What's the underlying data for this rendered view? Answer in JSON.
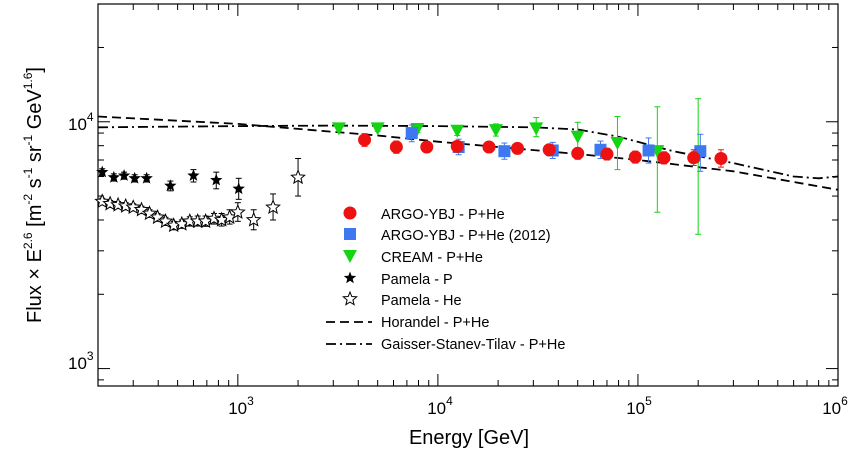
{
  "chart_data": {
    "type": "scatter",
    "x_scale": "log",
    "y_scale": "log",
    "xlim": [
      200,
      1000000
    ],
    "ylim": [
      850,
      30000
    ],
    "grid": false,
    "legend_position": "center",
    "xlabel": "Energy [GeV]",
    "ylabel": {
      "main": "Flux × E",
      "exp1": "2.6",
      "bracket": " [m",
      "exp2": "-2",
      "s": " s",
      "exp3": "-1",
      "sr": " sr",
      "exp4": "-1",
      "gev": " GeV",
      "exp5": "1.6",
      "close": "]"
    },
    "x_ticks": [
      {
        "value": 1000,
        "base": "10",
        "exp": "3"
      },
      {
        "value": 10000,
        "base": "10",
        "exp": "4"
      },
      {
        "value": 100000,
        "base": "10",
        "exp": "5"
      },
      {
        "value": 1000000,
        "base": "10",
        "exp": "6"
      }
    ],
    "y_ticks": [
      {
        "value": 1000,
        "base": "10",
        "exp": "3"
      },
      {
        "value": 10000,
        "base": "10",
        "exp": "4"
      }
    ],
    "series": [
      {
        "name": "ARGO-YBJ - P+He",
        "marker": "circle",
        "color": "#ee1111",
        "points": [
          {
            "x": 4300,
            "y": 8450,
            "lo": 7950,
            "hi": 8950
          },
          {
            "x": 6200,
            "y": 7900,
            "lo": 7450,
            "hi": 8350
          },
          {
            "x": 8800,
            "y": 7900,
            "lo": 7500,
            "hi": 8300
          },
          {
            "x": 12500,
            "y": 7950,
            "lo": 7550,
            "hi": 8350
          },
          {
            "x": 18000,
            "y": 7900,
            "lo": 7500,
            "hi": 8300
          },
          {
            "x": 25000,
            "y": 7800,
            "lo": 7400,
            "hi": 8200
          },
          {
            "x": 36000,
            "y": 7700,
            "lo": 7300,
            "hi": 8100
          },
          {
            "x": 50000,
            "y": 7450,
            "lo": 7050,
            "hi": 7850
          },
          {
            "x": 70000,
            "y": 7400,
            "lo": 7000,
            "hi": 7800
          },
          {
            "x": 97000,
            "y": 7200,
            "lo": 6800,
            "hi": 7600
          },
          {
            "x": 135000,
            "y": 7150,
            "lo": 6750,
            "hi": 7550
          },
          {
            "x": 190000,
            "y": 7150,
            "lo": 6650,
            "hi": 7700
          },
          {
            "x": 260000,
            "y": 7100,
            "lo": 6550,
            "hi": 7700
          }
        ]
      },
      {
        "name": "ARGO-YBJ - P+He (2012)",
        "marker": "square",
        "color": "#3d78f0",
        "points": [
          {
            "x": 7400,
            "y": 9000,
            "lo": 8300,
            "hi": 9700
          },
          {
            "x": 12700,
            "y": 7900,
            "lo": 7350,
            "hi": 8500
          },
          {
            "x": 21500,
            "y": 7600,
            "lo": 7050,
            "hi": 8200
          },
          {
            "x": 37500,
            "y": 7650,
            "lo": 7100,
            "hi": 8250
          },
          {
            "x": 65000,
            "y": 7700,
            "lo": 7100,
            "hi": 8350
          },
          {
            "x": 113000,
            "y": 7650,
            "lo": 6800,
            "hi": 8600
          },
          {
            "x": 205000,
            "y": 7600,
            "lo": 6300,
            "hi": 8900
          }
        ]
      },
      {
        "name": "CREAM - P+He",
        "marker": "triangle-down",
        "color": "#14d414",
        "points": [
          {
            "x": 3200,
            "y": 9400,
            "lo": 9150,
            "hi": 9650
          },
          {
            "x": 5000,
            "y": 9400,
            "lo": 9150,
            "hi": 9650
          },
          {
            "x": 7900,
            "y": 9350,
            "lo": 9050,
            "hi": 9650
          },
          {
            "x": 12500,
            "y": 9200,
            "lo": 8800,
            "hi": 9650
          },
          {
            "x": 19500,
            "y": 9250,
            "lo": 8750,
            "hi": 9800
          },
          {
            "x": 31000,
            "y": 9400,
            "lo": 8700,
            "hi": 10400
          },
          {
            "x": 50000,
            "y": 8700,
            "lo": 7600,
            "hi": 9950
          },
          {
            "x": 79000,
            "y": 8200,
            "lo": 6400,
            "hi": 10500
          },
          {
            "x": 125000,
            "y": 7600,
            "lo": 4300,
            "hi": 11500
          },
          {
            "x": 200000,
            "y": 7200,
            "lo": 3500,
            "hi": 12400
          }
        ]
      },
      {
        "name": "Pamela - P",
        "marker": "star",
        "color": "#000000",
        "points": [
          {
            "x": 210,
            "y": 6250,
            "lo": 6050,
            "hi": 6450
          },
          {
            "x": 240,
            "y": 5950,
            "lo": 5750,
            "hi": 6150
          },
          {
            "x": 270,
            "y": 6050,
            "lo": 5850,
            "hi": 6250
          },
          {
            "x": 305,
            "y": 5900,
            "lo": 5700,
            "hi": 6100
          },
          {
            "x": 350,
            "y": 5900,
            "lo": 5700,
            "hi": 6100
          },
          {
            "x": 460,
            "y": 5500,
            "lo": 5250,
            "hi": 5750
          },
          {
            "x": 600,
            "y": 6050,
            "lo": 5700,
            "hi": 6400
          },
          {
            "x": 780,
            "y": 5800,
            "lo": 5350,
            "hi": 6250
          },
          {
            "x": 1010,
            "y": 5350,
            "lo": 4850,
            "hi": 5900
          }
        ]
      },
      {
        "name": "Pamela - He",
        "marker": "star-open",
        "color": "#000000",
        "points": [
          {
            "x": 210,
            "y": 4750,
            "lo": 4600,
            "hi": 4900
          },
          {
            "x": 230,
            "y": 4650,
            "lo": 4500,
            "hi": 4800
          },
          {
            "x": 252,
            "y": 4600,
            "lo": 4450,
            "hi": 4750
          },
          {
            "x": 275,
            "y": 4550,
            "lo": 4400,
            "hi": 4700
          },
          {
            "x": 300,
            "y": 4500,
            "lo": 4350,
            "hi": 4650
          },
          {
            "x": 330,
            "y": 4400,
            "lo": 4250,
            "hi": 4550
          },
          {
            "x": 362,
            "y": 4250,
            "lo": 4100,
            "hi": 4400
          },
          {
            "x": 397,
            "y": 4100,
            "lo": 3950,
            "hi": 4250
          },
          {
            "x": 435,
            "y": 3950,
            "lo": 3800,
            "hi": 4100
          },
          {
            "x": 478,
            "y": 3800,
            "lo": 3650,
            "hi": 3950
          },
          {
            "x": 525,
            "y": 3850,
            "lo": 3700,
            "hi": 4000
          },
          {
            "x": 575,
            "y": 3950,
            "lo": 3780,
            "hi": 4120
          },
          {
            "x": 630,
            "y": 3950,
            "lo": 3780,
            "hi": 4150
          },
          {
            "x": 690,
            "y": 3950,
            "lo": 3770,
            "hi": 4150
          },
          {
            "x": 760,
            "y": 4050,
            "lo": 3850,
            "hi": 4250
          },
          {
            "x": 830,
            "y": 4000,
            "lo": 3780,
            "hi": 4250
          },
          {
            "x": 910,
            "y": 4100,
            "lo": 3850,
            "hi": 4400
          },
          {
            "x": 1000,
            "y": 4300,
            "lo": 3950,
            "hi": 4700
          },
          {
            "x": 1200,
            "y": 4000,
            "lo": 3650,
            "hi": 4400
          },
          {
            "x": 1500,
            "y": 4500,
            "lo": 4000,
            "hi": 5100
          },
          {
            "x": 2000,
            "y": 5950,
            "lo": 5000,
            "hi": 7100
          }
        ]
      }
    ],
    "lines": [
      {
        "name": "Horandel - P+He",
        "style": "dashed",
        "color": "#000000",
        "points": [
          [
            200,
            10500
          ],
          [
            1000,
            9800
          ],
          [
            5000,
            8800
          ],
          [
            10000,
            8300
          ],
          [
            50000,
            7400
          ],
          [
            100000,
            7000
          ],
          [
            300000,
            6300
          ],
          [
            1000000,
            5300
          ]
        ]
      },
      {
        "name": "Gaisser-Stanev-Tilav - P+He",
        "style": "dashdot",
        "color": "#000000",
        "points": [
          [
            200,
            9500
          ],
          [
            1000,
            9600
          ],
          [
            3000,
            9650
          ],
          [
            10000,
            9600
          ],
          [
            30000,
            9500
          ],
          [
            50000,
            9300
          ],
          [
            80000,
            8700
          ],
          [
            150000,
            7600
          ],
          [
            300000,
            6800
          ],
          [
            600000,
            6000
          ],
          [
            800000,
            5900
          ],
          [
            1000000,
            6000
          ]
        ]
      }
    ]
  }
}
